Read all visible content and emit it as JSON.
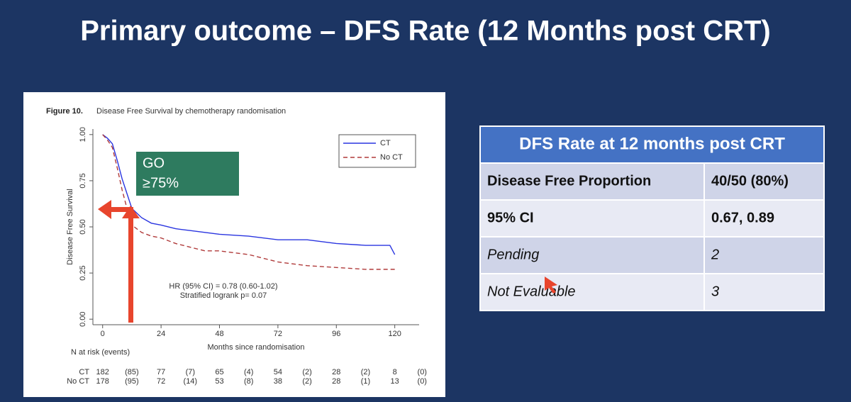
{
  "title": "Primary outcome –  DFS Rate (12 Months post CRT)",
  "chart_data": {
    "type": "line",
    "figure_label": "Figure 10.",
    "title": "Disease Free Survival by chemotherapy randomisation",
    "x_label": "Months since randomisation",
    "y_label": "Disease Free Survival",
    "x": [
      0,
      2,
      4,
      6,
      8,
      10,
      12,
      16,
      20,
      24,
      30,
      36,
      42,
      48,
      60,
      72,
      84,
      96,
      108,
      118,
      120
    ],
    "series": [
      {
        "name": "CT",
        "color": "#2a35e0",
        "dash": false,
        "values": [
          1.0,
          0.98,
          0.95,
          0.86,
          0.76,
          0.68,
          0.6,
          0.55,
          0.52,
          0.51,
          0.49,
          0.48,
          0.47,
          0.46,
          0.45,
          0.43,
          0.43,
          0.41,
          0.4,
          0.4,
          0.35
        ]
      },
      {
        "name": "No CT",
        "color": "#b03a3a",
        "dash": true,
        "values": [
          1.0,
          0.97,
          0.93,
          0.82,
          0.7,
          0.6,
          0.51,
          0.47,
          0.45,
          0.44,
          0.41,
          0.39,
          0.37,
          0.37,
          0.35,
          0.31,
          0.29,
          0.28,
          0.27,
          0.27,
          0.27
        ]
      }
    ],
    "xlim": [
      -4,
      130
    ],
    "ylim": [
      -0.03,
      1.03
    ],
    "xticks": [
      0,
      24,
      48,
      72,
      96,
      120
    ],
    "yticks": [
      {
        "value": 0,
        "label": "0.00"
      },
      {
        "value": 0.25,
        "label": "0.25"
      },
      {
        "value": 0.5,
        "label": "0.50"
      },
      {
        "value": 0.75,
        "label": "0.75"
      },
      {
        "value": 1,
        "label": "1.00"
      }
    ],
    "legend": "top-right",
    "annotations": [
      "HR (95% CI) = 0.78 (0.60-1.02)",
      "Stratified logrank p= 0.07"
    ],
    "go_box": [
      "GO",
      "≥75%"
    ],
    "risk_table": {
      "title": "N at risk (events)",
      "rows": [
        {
          "label": "CT",
          "cells": [
            "182",
            "(85)",
            "77",
            "(7)",
            "65",
            "(4)",
            "54",
            "(2)",
            "28",
            "(2)",
            "8",
            "(0)"
          ]
        },
        {
          "label": "No CT",
          "cells": [
            "178",
            "(95)",
            "72",
            "(14)",
            "53",
            "(8)",
            "38",
            "(2)",
            "28",
            "(1)",
            "13",
            "(0)"
          ]
        }
      ]
    }
  },
  "table": {
    "header": "DFS Rate at 12 months post CRT",
    "rows": [
      [
        "Disease Free Proportion",
        "40/50 (80%)"
      ],
      [
        "95% CI",
        "0.67, 0.89"
      ],
      [
        "Pending",
        "2"
      ],
      [
        "Not Evaluable",
        "3"
      ]
    ]
  }
}
